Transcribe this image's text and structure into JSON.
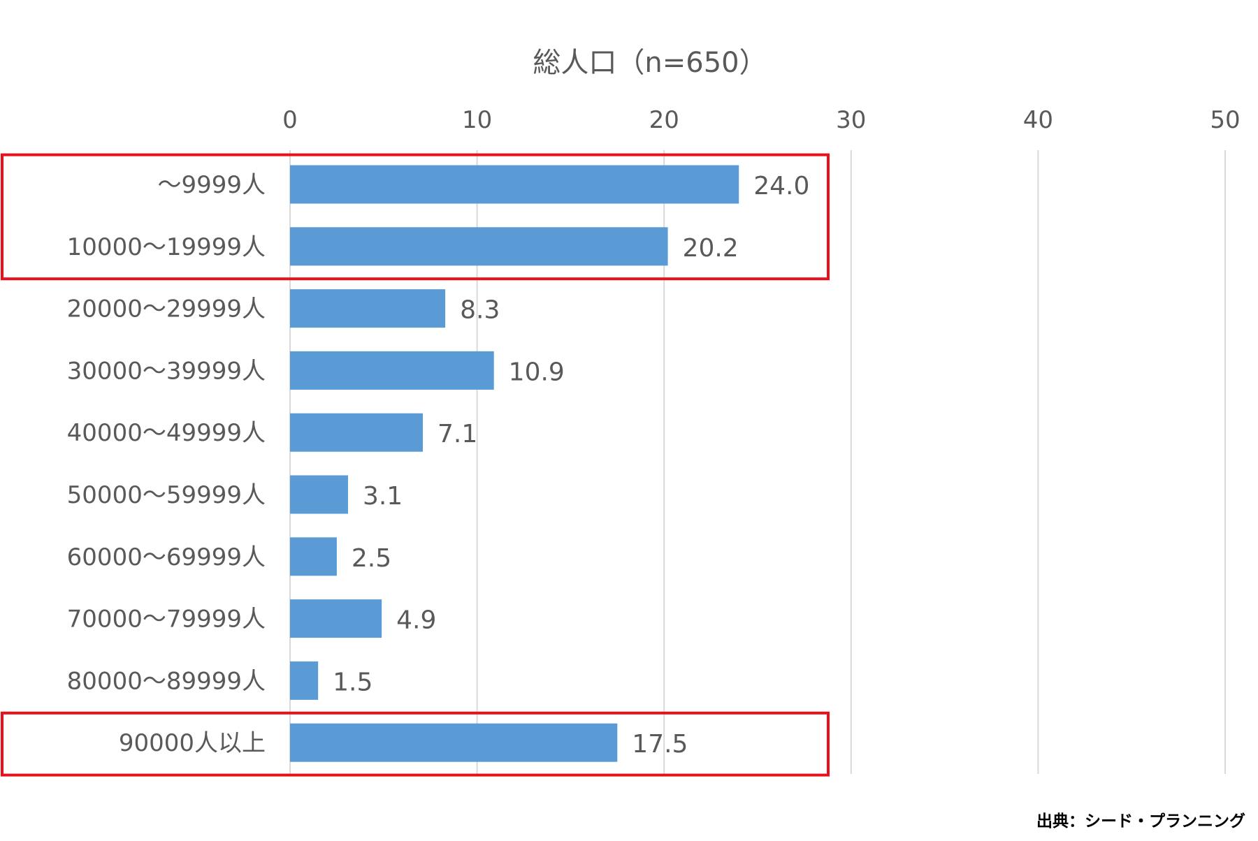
{
  "chart_data": {
    "type": "bar",
    "orientation": "horizontal",
    "title": "総人口（n=650）",
    "xlabel": "",
    "ylabel": "",
    "xlim": [
      0,
      50
    ],
    "ticks": [
      0,
      10,
      20,
      30,
      40,
      50
    ],
    "grid": true,
    "categories": [
      "～9999人",
      "10000～19999人",
      "20000～29999人",
      "30000～39999人",
      "40000～49999人",
      "50000～59999人",
      "60000～69999人",
      "70000～79999人",
      "80000～89999人",
      "90000人以上"
    ],
    "values": [
      24.0,
      20.2,
      8.3,
      10.9,
      7.1,
      3.1,
      2.5,
      4.9,
      1.5,
      17.5
    ],
    "value_labels": [
      "24.0",
      "20.2",
      "8.3",
      "10.9",
      "7.1",
      "3.1",
      "2.5",
      "4.9",
      "1.5",
      "17.5"
    ],
    "highlight_groups": [
      [
        0,
        1
      ],
      [
        9
      ]
    ]
  },
  "source_note": "出典：シード・プランニング",
  "colors": {
    "bar": "#5B9BD5",
    "highlight": "#E8101A",
    "grid": "#D9D9D9",
    "text": "#595959",
    "source_text": "#000000"
  }
}
